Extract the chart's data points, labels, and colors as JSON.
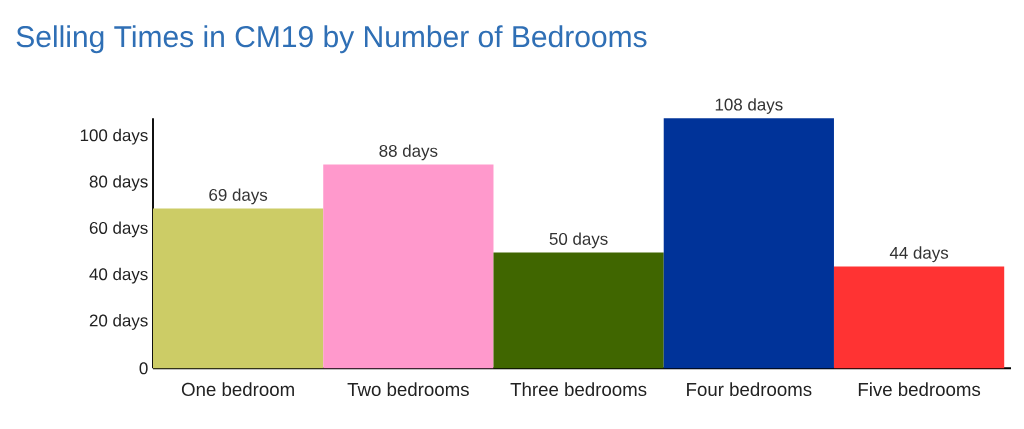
{
  "chart_data": {
    "type": "bar",
    "title": "Selling Times in CM19 by Number of Bedrooms",
    "categories": [
      "One bedroom",
      "Two bedrooms",
      "Three bedrooms",
      "Four bedrooms",
      "Five bedrooms"
    ],
    "values": [
      69,
      88,
      50,
      108,
      44
    ],
    "colors": [
      "#cccc66",
      "#ff99cc",
      "#406600",
      "#003399",
      "#ff3333"
    ],
    "value_labels": [
      "69 days",
      "88 days",
      "50 days",
      "108 days",
      "44 days"
    ],
    "ylim": [
      0,
      108
    ],
    "yticks": [
      0,
      {
        "value": 20,
        "label": "20 days"
      },
      {
        "value": 40,
        "label": "40 days"
      },
      {
        "value": 60,
        "label": "60 days"
      },
      {
        "value": 80,
        "label": "80 days"
      },
      {
        "value": 100,
        "label": "100 days"
      }
    ]
  }
}
